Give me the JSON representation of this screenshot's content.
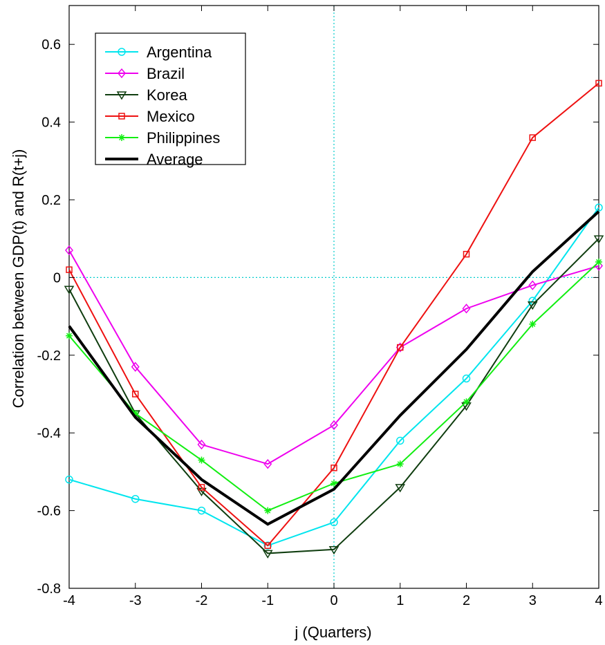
{
  "chart_data": {
    "type": "line",
    "title": "",
    "xlabel": "j (Quarters)",
    "ylabel": "Correlation  between GDP(t) and R(t+j)",
    "x": [
      -4,
      -3,
      -2,
      -1,
      0,
      1,
      2,
      3,
      4
    ],
    "xlim": [
      -4,
      4
    ],
    "ylim": [
      -0.8,
      0.7
    ],
    "xticks": [
      "-4",
      "-3",
      "-2",
      "-1",
      "0",
      "1",
      "2",
      "3",
      "4"
    ],
    "yticks": [
      "-0.8",
      "-0.6",
      "-0.4",
      "-0.2",
      "0",
      "0.2",
      "0.4",
      "0.6"
    ],
    "grid": false,
    "reference_lines": {
      "x": 0,
      "y": 0,
      "style": "dotted",
      "color": "#00cccc"
    },
    "legend_position": "top-left",
    "series": [
      {
        "name": "Argentina",
        "color": "#00e5ee",
        "marker": "circle",
        "values": [
          -0.52,
          -0.57,
          -0.6,
          -0.69,
          -0.63,
          -0.42,
          -0.26,
          -0.06,
          0.18
        ]
      },
      {
        "name": "Brazil",
        "color": "#ee00ee",
        "marker": "diamond",
        "values": [
          0.07,
          -0.23,
          -0.43,
          -0.48,
          -0.38,
          -0.18,
          -0.08,
          -0.02,
          0.03
        ]
      },
      {
        "name": "Korea",
        "color": "#0f3d0f",
        "marker": "triangle-down",
        "values": [
          -0.03,
          -0.35,
          -0.55,
          -0.71,
          -0.7,
          -0.54,
          -0.33,
          -0.07,
          0.1
        ]
      },
      {
        "name": "Mexico",
        "color": "#ee1111",
        "marker": "square",
        "values": [
          0.02,
          -0.3,
          -0.54,
          -0.69,
          -0.49,
          -0.18,
          0.06,
          0.36,
          0.5
        ]
      },
      {
        "name": "Philippines",
        "color": "#11ee11",
        "marker": "asterisk",
        "values": [
          -0.15,
          -0.35,
          -0.47,
          -0.6,
          -0.53,
          -0.48,
          -0.32,
          -0.12,
          0.04
        ]
      },
      {
        "name": "Average",
        "color": "#000000",
        "marker": "none",
        "values": [
          -0.125,
          -0.36,
          -0.52,
          -0.635,
          -0.545,
          -0.355,
          -0.185,
          0.015,
          0.17
        ]
      }
    ]
  }
}
